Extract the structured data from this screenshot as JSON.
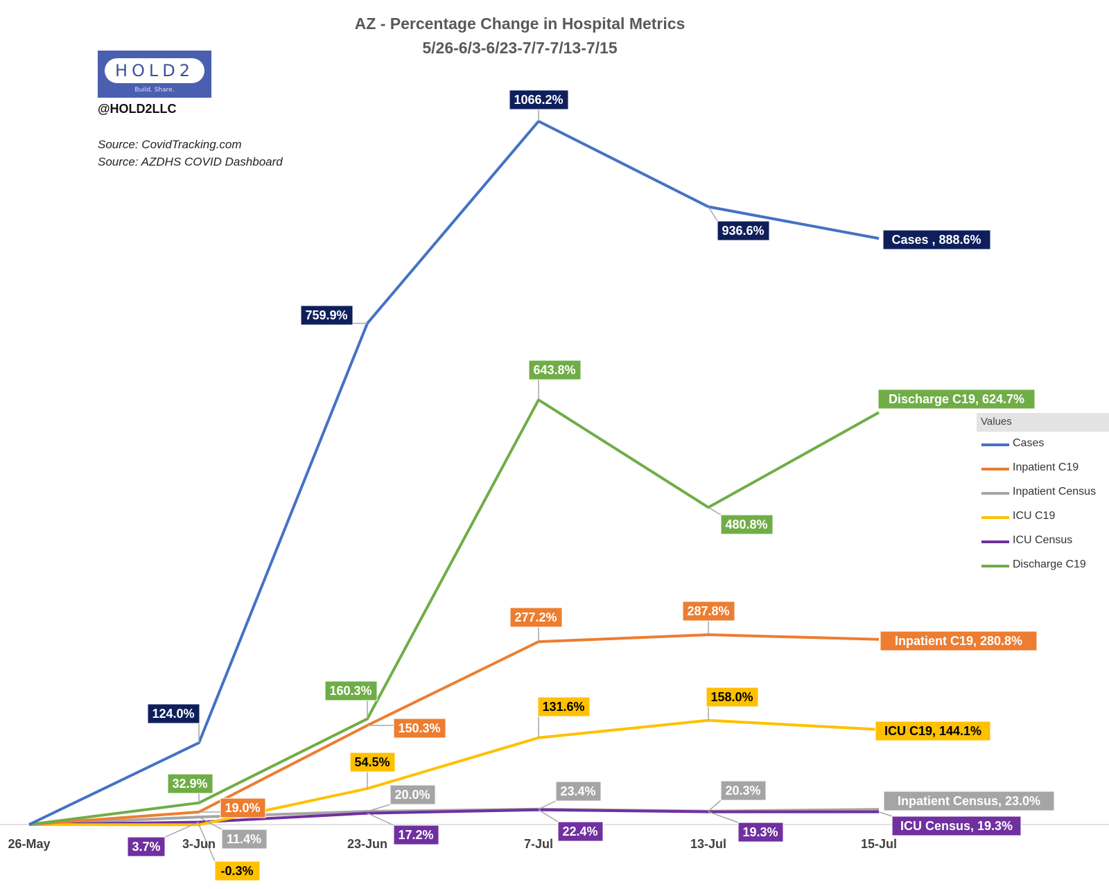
{
  "title": "AZ - Percentage Change in Hospital Metrics",
  "subtitle": "5/26-6/3-6/23-7/7-7/13-7/15",
  "logo": {
    "text": "HOLD2",
    "tagline": "Build. Share."
  },
  "handle": "@HOLD2LLC",
  "sources": [
    "Source: CovidTracking.com",
    "Source: AZDHS COVID Dashboard"
  ],
  "legend": {
    "title": "Values"
  },
  "chart_data": {
    "type": "line",
    "title": "AZ - Percentage Change in Hospital Metrics",
    "subtitle": "5/26-6/3-6/23-7/7-7/13-7/15",
    "categories": [
      "26-May",
      "3-Jun",
      "23-Jun",
      "7-Jul",
      "13-Jul",
      "15-Jul"
    ],
    "y_unit": "%",
    "ylim": [
      0,
      1066.2
    ],
    "grid": false,
    "legend_position": "right",
    "series": [
      {
        "name": "Cases",
        "color": "#4472c4",
        "label_color": "#0f1f5c",
        "label_text_color": "#ffffff",
        "values": [
          0,
          124.0,
          759.9,
          1066.2,
          936.6,
          888.6
        ],
        "labels": [
          "",
          "124.0%",
          "759.9%",
          "1066.2%",
          "936.6%",
          "Cases , 888.6%"
        ]
      },
      {
        "name": "Inpatient C19",
        "color": "#ed7d31",
        "label_color": "#ed7d31",
        "label_text_color": "#ffffff",
        "values": [
          0,
          19.0,
          150.3,
          277.2,
          287.8,
          280.8
        ],
        "labels": [
          "",
          "19.0%",
          "150.3%",
          "277.2%",
          "287.8%",
          "Inpatient C19, 280.8%"
        ]
      },
      {
        "name": "Inpatient Census",
        "color": "#a5a5a5",
        "label_color": "#a5a5a5",
        "label_text_color": "#ffffff",
        "values": [
          0,
          11.4,
          20.0,
          23.4,
          20.3,
          23.0
        ],
        "labels": [
          "",
          "11.4%",
          "20.0%",
          "23.4%",
          "20.3%",
          "Inpatient Census, 23.0%"
        ]
      },
      {
        "name": "ICU C19",
        "color": "#ffc000",
        "label_color": "#ffc000",
        "label_text_color": "#000000",
        "values": [
          0,
          -0.3,
          54.5,
          131.6,
          158.0,
          144.1
        ],
        "labels": [
          "",
          "-0.3%",
          "54.5%",
          "131.6%",
          "158.0%",
          "ICU C19, 144.1%"
        ]
      },
      {
        "name": "ICU Census",
        "color": "#7030a0",
        "label_color": "#7030a0",
        "label_text_color": "#ffffff",
        "values": [
          0,
          3.7,
          17.2,
          22.4,
          19.3,
          19.3
        ],
        "labels": [
          "",
          "3.7%",
          "17.2%",
          "22.4%",
          "19.3%",
          "ICU Census, 19.3%"
        ]
      },
      {
        "name": "Discharge C19",
        "color": "#70ad47",
        "label_color": "#70ad47",
        "label_text_color": "#ffffff",
        "values": [
          0,
          32.9,
          160.3,
          643.8,
          480.8,
          624.7
        ],
        "labels": [
          "",
          "32.9%",
          "160.3%",
          "643.8%",
          "480.8%",
          "Discharge C19, 624.7%"
        ]
      }
    ]
  }
}
